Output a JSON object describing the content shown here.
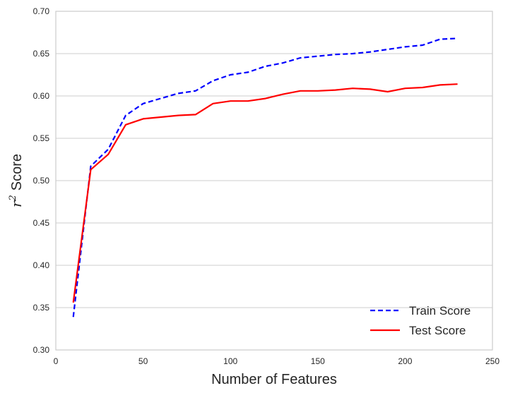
{
  "chart_data": {
    "type": "line",
    "xlabel": "Number of Features",
    "ylabel": {
      "variable": "r",
      "superscript": "2",
      "text": "Score"
    },
    "xlim": [
      0,
      250
    ],
    "ylim": [
      0.3,
      0.7
    ],
    "xticks": [
      0,
      50,
      100,
      150,
      200,
      250
    ],
    "xtick_labels": [
      "0",
      "50",
      "100",
      "150",
      "200",
      "250"
    ],
    "yticks": [
      0.3,
      0.35,
      0.4,
      0.45,
      0.5,
      0.55,
      0.6,
      0.65,
      0.7
    ],
    "ytick_labels": [
      "0.30",
      "0.35",
      "0.40",
      "0.45",
      "0.50",
      "0.55",
      "0.60",
      "0.65",
      "0.70"
    ],
    "grid": "horizontal",
    "legend_position": "lower-right",
    "series": [
      {
        "name": "Train Score",
        "color": "#0000ff",
        "style": "dashed",
        "x": [
          10,
          20,
          30,
          40,
          50,
          60,
          70,
          80,
          90,
          100,
          110,
          120,
          130,
          140,
          150,
          160,
          170,
          180,
          190,
          200,
          210,
          220,
          230
        ],
        "y": [
          0.339,
          0.517,
          0.537,
          0.577,
          0.591,
          0.597,
          0.603,
          0.606,
          0.618,
          0.625,
          0.628,
          0.635,
          0.639,
          0.645,
          0.647,
          0.649,
          0.65,
          0.652,
          0.655,
          0.658,
          0.66,
          0.667,
          0.668
        ]
      },
      {
        "name": "Test Score",
        "color": "#ff0000",
        "style": "solid",
        "x": [
          10,
          20,
          30,
          40,
          50,
          60,
          70,
          80,
          90,
          100,
          110,
          120,
          130,
          140,
          150,
          160,
          170,
          180,
          190,
          200,
          210,
          220,
          230
        ],
        "y": [
          0.356,
          0.513,
          0.531,
          0.566,
          0.573,
          0.575,
          0.577,
          0.578,
          0.591,
          0.594,
          0.594,
          0.597,
          0.602,
          0.606,
          0.606,
          0.607,
          0.609,
          0.608,
          0.605,
          0.609,
          0.61,
          0.613,
          0.614
        ]
      }
    ]
  }
}
